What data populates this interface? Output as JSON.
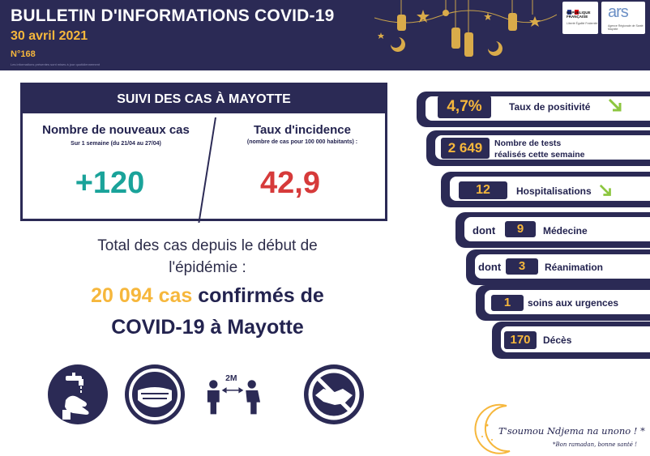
{
  "header": {
    "title": "BULLETIN D'INFORMATIONS COVID-19",
    "date": "30 avril 2021",
    "number": "N°168",
    "small_note": "Les informations présentes sont mises à jour quotidiennement",
    "logos": {
      "republique": "RÉPUBLIQUE FRANÇAISE",
      "republique_motto": "Liberté Égalité Fraternité",
      "ars": "ars",
      "ars_sub": "Agence Régionale de Santé Mayotte"
    }
  },
  "suivi": {
    "heading": "SUIVI DES CAS À MAYOTTE",
    "left_title": "Nombre de nouveaux cas",
    "left_sub": "Sur 1 semaine (du 21/04 au 27/04)",
    "left_value": "+120",
    "right_title": "Taux d'incidence",
    "right_sub": "(nombre de cas pour 100 000 habitants) :",
    "right_value": "42,9"
  },
  "total": {
    "line1": "Total des cas depuis le début de",
    "line2": "l'épidémie :",
    "cases": "20 094 cas",
    "confirmed": " confirmés de",
    "line4": "COVID-19 à Mayotte"
  },
  "gestures": [
    {
      "icon": "handwash-icon"
    },
    {
      "icon": "mask-icon"
    },
    {
      "icon": "distance-icon",
      "label": "2M"
    },
    {
      "icon": "no-handshake-icon"
    }
  ],
  "stats": {
    "positivity": {
      "value": "4,7%",
      "label": "Taux de positivité",
      "trend": "down"
    },
    "tests": {
      "value": "2 649",
      "label_1": "Nombre de tests",
      "label_2": "réalisés cette semaine"
    },
    "hospitalisations": {
      "value": "12",
      "label": "Hospitalisations",
      "trend": "down"
    },
    "medecine": {
      "prefix": "dont",
      "value": "9",
      "label": "Médecine"
    },
    "reanimation": {
      "prefix": "dont",
      "value": "3",
      "label": "Réanimation"
    },
    "urgences": {
      "value": "1",
      "label": "soins aux urgences"
    },
    "deces": {
      "value": "170",
      "label": "Décès"
    }
  },
  "footer": {
    "slogan": "T'soumou Ndjema na unono ! *",
    "slogan_translation": "*Bon ramadan, bonne santé !"
  },
  "colors": {
    "navy": "#2b2a55",
    "orange": "#f6b73c",
    "teal": "#1aa39a",
    "red": "#d63a3a",
    "green_arrow": "#8cc63f"
  }
}
